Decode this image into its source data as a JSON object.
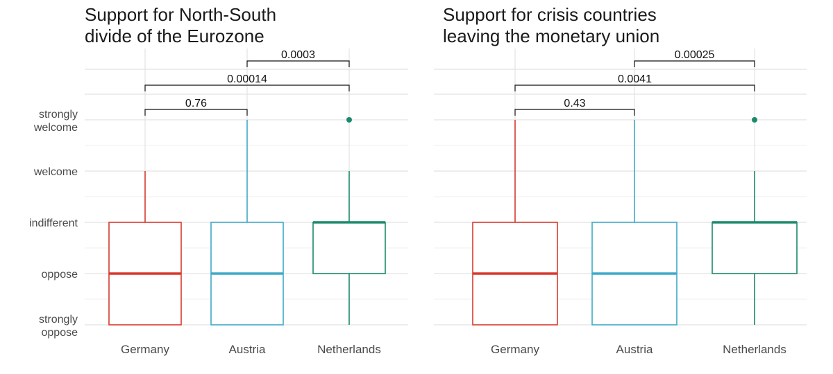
{
  "chart_data": [
    {
      "type": "box",
      "title_lines": [
        "Support for North-South",
        "divide of the Eurozone"
      ],
      "y_levels": [
        "strongly oppose",
        "oppose",
        "indifferent",
        "welcome",
        "strongly welcome"
      ],
      "y_tick_lines": [
        [
          "strongly",
          "oppose"
        ],
        [
          "oppose"
        ],
        [
          "indifferent"
        ],
        [
          "welcome"
        ],
        [
          "strongly",
          "welcome"
        ]
      ],
      "ylim": [
        1,
        5
      ],
      "categories": [
        "Germany",
        "Austria",
        "Netherlands"
      ],
      "boxes": [
        {
          "name": "Germany",
          "color": "#d73a2f",
          "whisker_low": 1,
          "q1": 1,
          "median": 2,
          "q3": 3,
          "whisker_high": 4,
          "outliers": []
        },
        {
          "name": "Austria",
          "color": "#3fa9c9",
          "whisker_low": 1,
          "q1": 1,
          "median": 2,
          "q3": 3,
          "whisker_high": 5,
          "outliers": []
        },
        {
          "name": "Netherlands",
          "color": "#1b8a6b",
          "whisker_low": 1,
          "q1": 2,
          "median": 3,
          "q3": 3,
          "whisker_high": 4,
          "outliers": [
            5
          ]
        }
      ],
      "comparisons": [
        {
          "from": "Germany",
          "to": "Austria",
          "p_label": "0.76"
        },
        {
          "from": "Germany",
          "to": "Netherlands",
          "p_label": "0.00014"
        },
        {
          "from": "Austria",
          "to": "Netherlands",
          "p_label": "0.0003"
        }
      ]
    },
    {
      "type": "box",
      "title_lines": [
        "Support for crisis countries",
        "leaving the monetary union"
      ],
      "y_levels": [
        "strongly oppose",
        "oppose",
        "indifferent",
        "welcome",
        "strongly welcome"
      ],
      "ylim": [
        1,
        5
      ],
      "categories": [
        "Germany",
        "Austria",
        "Netherlands"
      ],
      "boxes": [
        {
          "name": "Germany",
          "color": "#d73a2f",
          "whisker_low": 1,
          "q1": 1,
          "median": 2,
          "q3": 3,
          "whisker_high": 5,
          "outliers": []
        },
        {
          "name": "Austria",
          "color": "#3fa9c9",
          "whisker_low": 1,
          "q1": 1,
          "median": 2,
          "q3": 3,
          "whisker_high": 5,
          "outliers": []
        },
        {
          "name": "Netherlands",
          "color": "#1b8a6b",
          "whisker_low": 1,
          "q1": 2,
          "median": 3,
          "q3": 3,
          "whisker_high": 4,
          "outliers": [
            5
          ]
        }
      ],
      "comparisons": [
        {
          "from": "Germany",
          "to": "Austria",
          "p_label": "0.43"
        },
        {
          "from": "Germany",
          "to": "Netherlands",
          "p_label": "0.0041"
        },
        {
          "from": "Austria",
          "to": "Netherlands",
          "p_label": "0.00025"
        }
      ]
    }
  ]
}
